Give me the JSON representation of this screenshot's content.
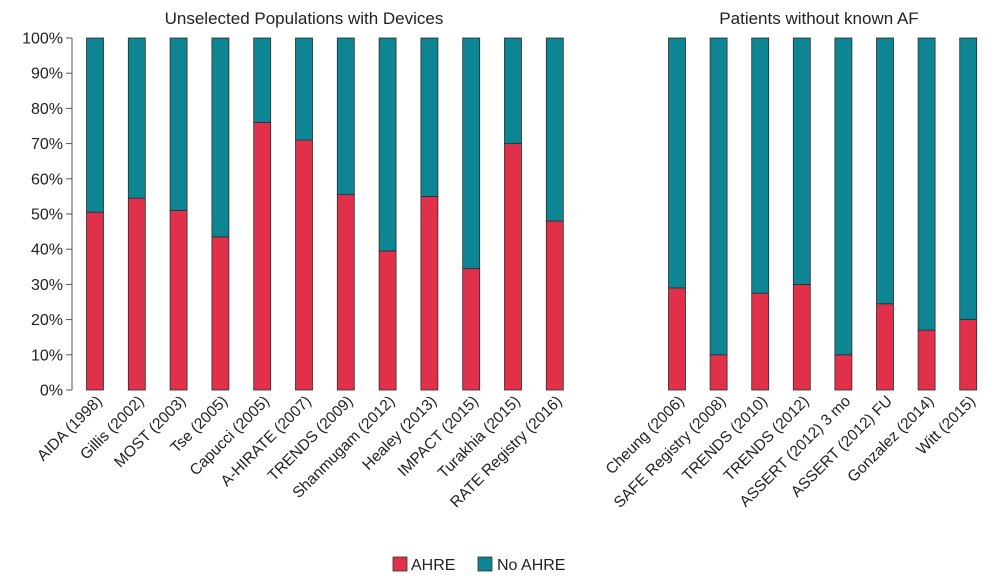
{
  "chart_data": {
    "type": "bar",
    "stacked": true,
    "percent_stacked": true,
    "grid": false,
    "legend_position": "bottom",
    "y_ticks": [
      "0%",
      "10%",
      "20%",
      "30%",
      "40%",
      "50%",
      "60%",
      "70%",
      "80%",
      "90%",
      "100%"
    ],
    "ylim": [
      0,
      100
    ],
    "series": [
      {
        "name": "AHRE",
        "color": "#e0304a"
      },
      {
        "name": "No AHRE",
        "color": "#0e8592"
      }
    ],
    "groups": [
      {
        "title": "Unselected Populations with Devices",
        "categories": [
          "AIDA (1998)",
          "Gillis (2002)",
          "MOST (2003)",
          "Tse (2005)",
          "Capucci (2005)",
          "A-HIRATE (2007)",
          "TRENDS (2009)",
          "Shanmugam (2012)",
          "Healey (2013)",
          "IMPACT (2015)",
          "Turakhia (2015)",
          "RATE Registry (2016)"
        ],
        "ahre": [
          50.5,
          54.5,
          51,
          43.5,
          76,
          71,
          55.5,
          39.5,
          55,
          34.5,
          70,
          48
        ],
        "no_ahre": [
          49.5,
          45.5,
          49,
          56.5,
          24,
          29,
          44.5,
          60.5,
          45,
          65.5,
          30,
          52
        ]
      },
      {
        "title": "Patients without known AF",
        "categories": [
          "Cheung (2006)",
          "SAFE Registry (2008)",
          "TRENDS (2010)",
          "TRENDS (2012)",
          "ASSERT (2012) 3 mo",
          "ASSERT (2012) FU",
          "Gonzalez (2014)",
          "Witt (2015)"
        ],
        "ahre": [
          29,
          10,
          27.5,
          30,
          10,
          24.5,
          17,
          20
        ],
        "no_ahre": [
          71,
          90,
          72.5,
          70,
          90,
          75.5,
          83,
          80
        ]
      }
    ]
  }
}
